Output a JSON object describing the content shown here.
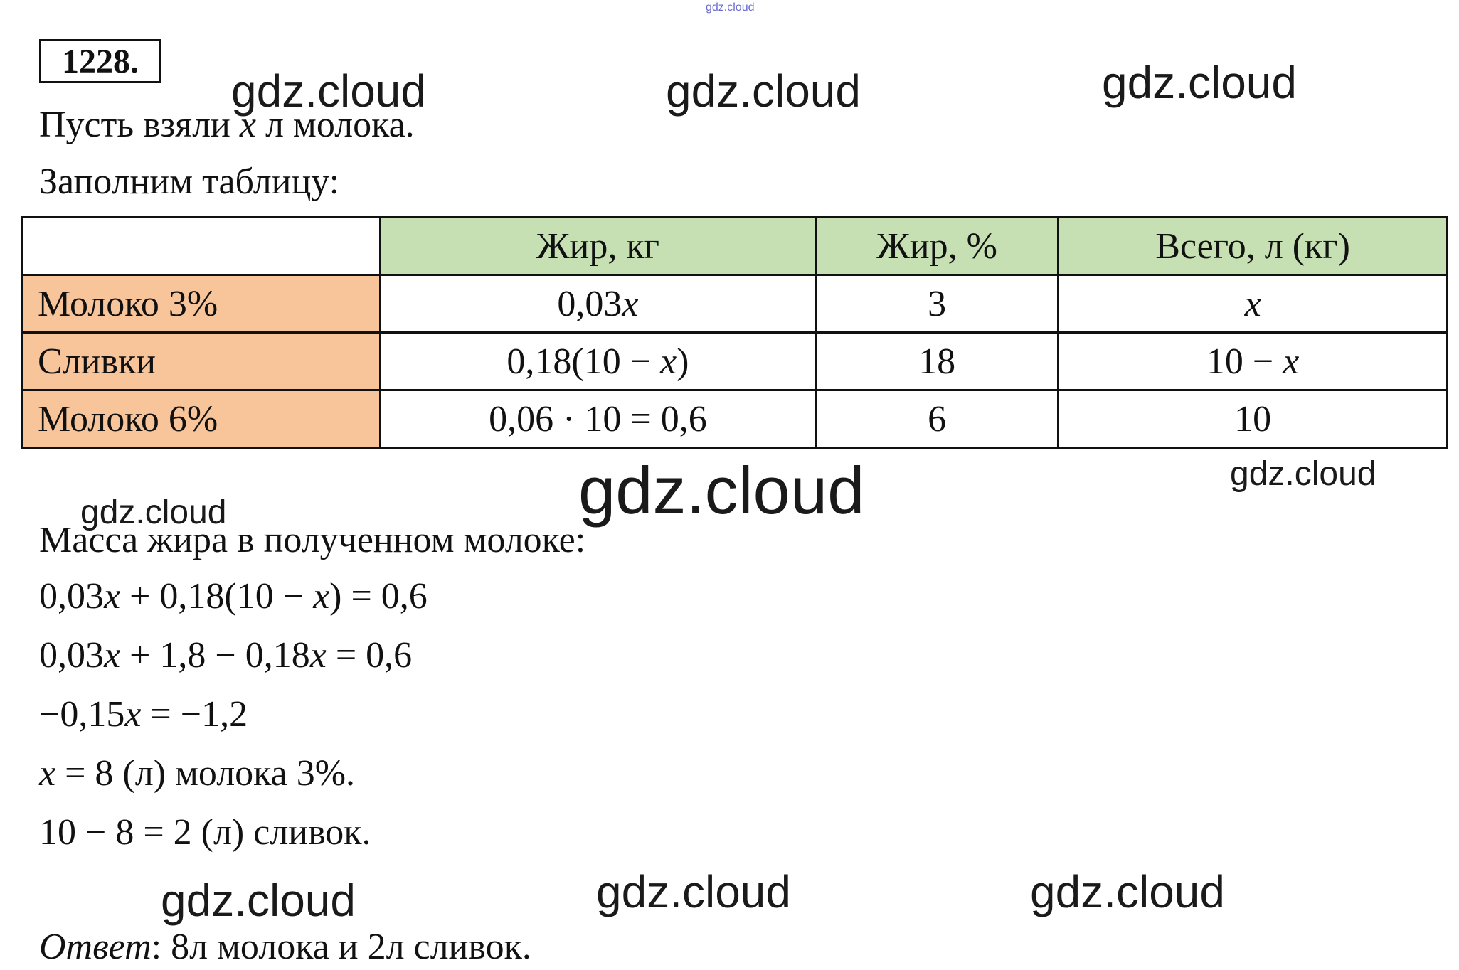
{
  "problem_number": "1228.",
  "intro": [
    "Пусть взяли x л молока.",
    "Заполним таблицу:"
  ],
  "table": {
    "header": [
      "Жир, кг",
      "Жир, %",
      "Всего, л (кг)"
    ],
    "rows": [
      [
        "Молоко 3%",
        "0,03x",
        "3",
        "x"
      ],
      [
        "Сливки",
        "0,18(10 − x)",
        "18",
        "10 − x"
      ],
      [
        "Молоко 6%",
        "0,06 · 10 = 0,6",
        "6",
        "10"
      ]
    ]
  },
  "solution": [
    "Масса жира в полученном молоке:",
    "0,03x + 0,18(10 − x) = 0,6",
    "0,03x + 1,8 − 0,18x = 0,6",
    "−0,15x = −1,2",
    "x = 8 (л) молока 3%.",
    "10 − 8 = 2 (л) сливок."
  ],
  "answer": {
    "label": "Ответ",
    "text": ": 8л молока и 2л сливок."
  },
  "watermarks": [
    "gdz.cloud",
    "gdz.cloud",
    "gdz.cloud",
    "gdz.cloud",
    "gdz.cloud",
    "gdz.cloud",
    "gdz.cloud",
    "gdz.cloud",
    "gdz.cloud",
    "gdz.cloud"
  ]
}
